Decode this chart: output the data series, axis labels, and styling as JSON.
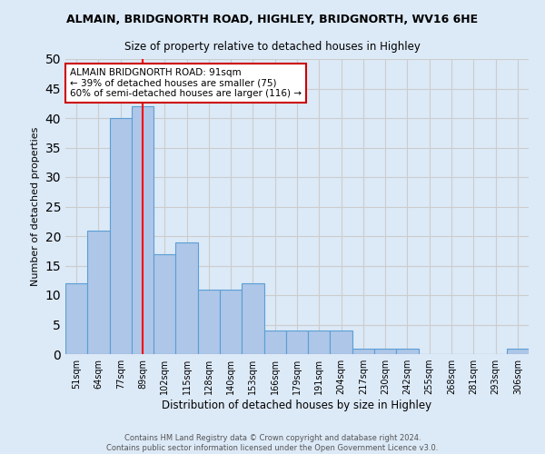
{
  "title": "ALMAIN, BRIDGNORTH ROAD, HIGHLEY, BRIDGNORTH, WV16 6HE",
  "subtitle": "Size of property relative to detached houses in Highley",
  "xlabel": "Distribution of detached houses by size in Highley",
  "ylabel": "Number of detached properties",
  "categories": [
    "51sqm",
    "64sqm",
    "77sqm",
    "89sqm",
    "102sqm",
    "115sqm",
    "128sqm",
    "140sqm",
    "153sqm",
    "166sqm",
    "179sqm",
    "191sqm",
    "204sqm",
    "217sqm",
    "230sqm",
    "242sqm",
    "255sqm",
    "268sqm",
    "281sqm",
    "293sqm",
    "306sqm"
  ],
  "values": [
    12,
    21,
    40,
    42,
    17,
    19,
    11,
    11,
    12,
    4,
    4,
    4,
    4,
    1,
    1,
    1,
    0,
    0,
    0,
    0,
    1
  ],
  "bar_color": "#aec6e8",
  "bar_edge_color": "#5a9fd4",
  "grid_color": "#cccccc",
  "bg_color": "#dce9f7",
  "red_line_x": 3.0,
  "annotation_text": "ALMAIN BRIDGNORTH ROAD: 91sqm\n← 39% of detached houses are smaller (75)\n60% of semi-detached houses are larger (116) →",
  "annotation_box_color": "#ffffff",
  "annotation_border_color": "#cc0000",
  "ylim": [
    0,
    50
  ],
  "yticks": [
    0,
    5,
    10,
    15,
    20,
    25,
    30,
    35,
    40,
    45,
    50
  ],
  "footer": "Contains HM Land Registry data © Crown copyright and database right 2024.\nContains public sector information licensed under the Open Government Licence v3.0."
}
